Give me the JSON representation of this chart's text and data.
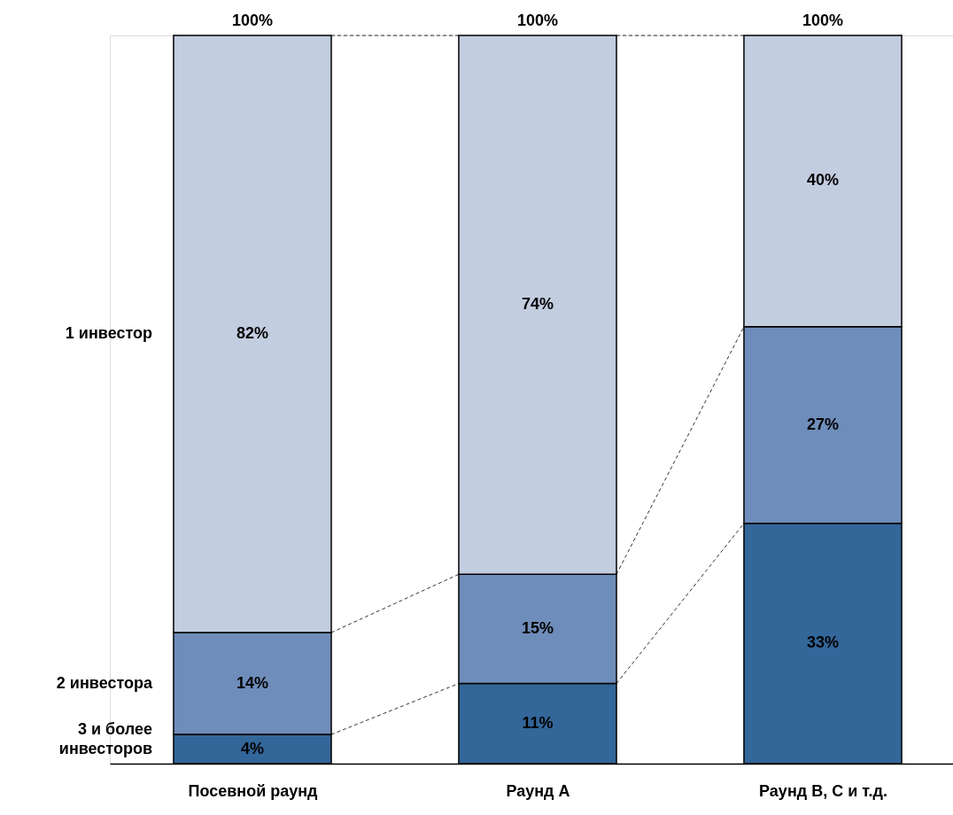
{
  "chart_data": {
    "type": "bar",
    "stacked": true,
    "categories": [
      "Посевной раунд",
      "Раунд A",
      "Раунд B, C и т.д."
    ],
    "series": [
      {
        "name": "3 и более инвесторов",
        "color": "#336699",
        "values": [
          4,
          11,
          33
        ],
        "value_labels": [
          "4%",
          "11%",
          "33%"
        ]
      },
      {
        "name": "2 инвестора",
        "color": "#6f8dba",
        "values": [
          14,
          15,
          27
        ],
        "value_labels": [
          "14%",
          "15%",
          "27%"
        ]
      },
      {
        "name": "1 инвестор",
        "color": "#c3cde0",
        "values": [
          82,
          74,
          40
        ],
        "value_labels": [
          "82%",
          "74%",
          "40%"
        ]
      }
    ],
    "totals": [
      "100%",
      "100%",
      "100%"
    ]
  }
}
